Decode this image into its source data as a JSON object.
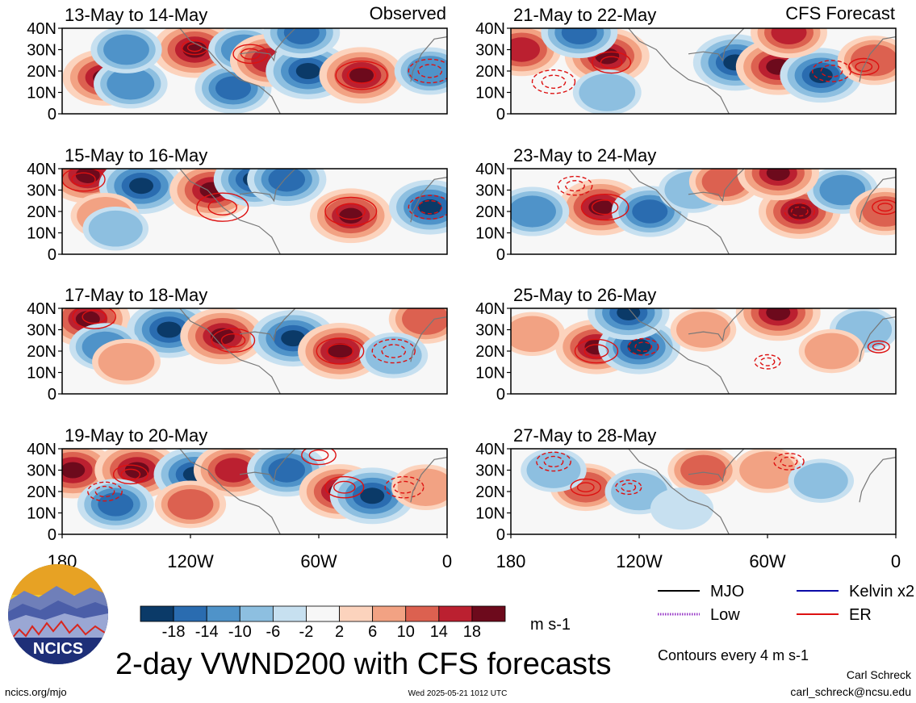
{
  "chart_data": {
    "type": "heatmap",
    "title": "2-day VWND200 with CFS forecasts",
    "units": "m s-1",
    "contour_note": "Contours every 4 m s-1",
    "column_labels": [
      "Observed",
      "CFS Forecast"
    ],
    "x_ticks": [
      "180",
      "120W",
      "60W",
      "0"
    ],
    "y_ticks": [
      "40N",
      "30N",
      "20N",
      "10N",
      "0"
    ],
    "colorbar": {
      "labels": [
        "-18",
        "-14",
        "-10",
        "-6",
        "-2",
        "2",
        "6",
        "10",
        "14",
        "18"
      ],
      "colors": [
        "#0b3a68",
        "#2a6cb0",
        "#4f93c9",
        "#8dbfe0",
        "#c7e0f0",
        "#f7f7f7",
        "#fcd3bd",
        "#f2a283",
        "#dc6150",
        "#bb2030",
        "#6d0a1c"
      ]
    },
    "legend": [
      {
        "label": "MJO",
        "color": "#000000",
        "style": "solid"
      },
      {
        "label": "Kelvin x2",
        "color": "#0a0aa8",
        "style": "solid"
      },
      {
        "label": "Low",
        "color": "#9a3cc8",
        "style": "dotted"
      },
      {
        "label": "ER",
        "color": "#dd1111",
        "style": "solid"
      }
    ],
    "panels": [
      {
        "period": "13-May to 14-May",
        "col": 0,
        "row": 0,
        "blobs": [
          [
            -160,
            17,
            1.0
          ],
          [
            -148,
            14,
            -0.6
          ],
          [
            -118,
            30,
            1.0
          ],
          [
            -100,
            12,
            -0.7
          ],
          [
            -95,
            30,
            -0.5
          ],
          [
            -83,
            25,
            0.8
          ],
          [
            -65,
            20,
            -1.0
          ],
          [
            -68,
            38,
            -0.7
          ],
          [
            -40,
            18,
            1.0
          ],
          [
            -8,
            20,
            -0.5
          ],
          [
            -150,
            30,
            -0.5
          ]
        ],
        "contours": [
          [
            -40,
            18,
            12,
            true
          ],
          [
            -92,
            28,
            8,
            true
          ],
          [
            -8,
            20,
            10,
            false
          ],
          [
            -118,
            31,
            6,
            true
          ]
        ]
      },
      {
        "period": "21-May to 22-May",
        "col": 1,
        "row": 0,
        "blobs": [
          [
            -135,
            27,
            1.0
          ],
          [
            -175,
            30,
            0.8
          ],
          [
            -148,
            38,
            -0.7
          ],
          [
            -75,
            24,
            -1.0
          ],
          [
            -55,
            22,
            1.0
          ],
          [
            -35,
            18,
            -0.9
          ],
          [
            -10,
            25,
            0.6
          ],
          [
            -135,
            10,
            -0.4
          ],
          [
            -50,
            38,
            0.7
          ]
        ],
        "contours": [
          [
            -133,
            24,
            9,
            true
          ],
          [
            -160,
            15,
            10,
            false
          ],
          [
            -30,
            20,
            9,
            false
          ],
          [
            -15,
            22,
            7,
            true
          ]
        ]
      },
      {
        "period": "15-May to 16-May",
        "col": 0,
        "row": 1,
        "blobs": [
          [
            -168,
            37,
            1.0
          ],
          [
            -143,
            32,
            -1.0
          ],
          [
            -110,
            30,
            1.0
          ],
          [
            -90,
            35,
            -0.9
          ],
          [
            -75,
            35,
            -0.8
          ],
          [
            -45,
            18,
            0.9
          ],
          [
            -8,
            22,
            -0.9
          ],
          [
            -160,
            18,
            0.4
          ],
          [
            -155,
            12,
            -0.3
          ]
        ],
        "contours": [
          [
            -45,
            20,
            12,
            true
          ],
          [
            -8,
            22,
            10,
            false
          ],
          [
            -105,
            22,
            12,
            true
          ],
          [
            -170,
            35,
            10,
            true
          ]
        ]
      },
      {
        "period": "23-May to 24-May",
        "col": 1,
        "row": 1,
        "blobs": [
          [
            -138,
            22,
            1.0
          ],
          [
            -170,
            20,
            -0.6
          ],
          [
            -115,
            20,
            -0.7
          ],
          [
            -95,
            30,
            -0.4
          ],
          [
            -80,
            34,
            0.5
          ],
          [
            -45,
            20,
            0.9
          ],
          [
            -25,
            30,
            -0.5
          ],
          [
            -5,
            20,
            0.5
          ],
          [
            -55,
            38,
            0.9
          ]
        ],
        "contours": [
          [
            -136,
            22,
            11,
            true
          ],
          [
            -5,
            22,
            6,
            true
          ],
          [
            -150,
            32,
            8,
            false
          ],
          [
            -45,
            20,
            7,
            false
          ]
        ]
      },
      {
        "period": "17-May to 18-May",
        "col": 0,
        "row": 2,
        "blobs": [
          [
            -168,
            35,
            1.0
          ],
          [
            -130,
            30,
            -1.0
          ],
          [
            -105,
            27,
            1.0
          ],
          [
            -72,
            26,
            -1.0
          ],
          [
            -50,
            20,
            1.0
          ],
          [
            -160,
            22,
            -0.5
          ],
          [
            -150,
            15,
            0.4
          ],
          [
            -10,
            35,
            0.6
          ],
          [
            -25,
            18,
            -0.4
          ]
        ],
        "contours": [
          [
            -50,
            20,
            11,
            true
          ],
          [
            -100,
            25,
            10,
            true
          ],
          [
            -25,
            20,
            10,
            false
          ],
          [
            -165,
            36,
            10,
            true
          ]
        ]
      },
      {
        "period": "25-May to 26-May",
        "col": 1,
        "row": 2,
        "blobs": [
          [
            -140,
            22,
            0.9
          ],
          [
            -120,
            22,
            -0.9
          ],
          [
            -125,
            38,
            -0.9
          ],
          [
            -55,
            38,
            1.0
          ],
          [
            -15,
            30,
            -0.4
          ],
          [
            -90,
            30,
            0.3
          ],
          [
            -30,
            20,
            0.3
          ],
          [
            -170,
            28,
            0.3
          ]
        ],
        "contours": [
          [
            -140,
            20,
            10,
            true
          ],
          [
            -118,
            22,
            7,
            false
          ],
          [
            -60,
            15,
            6,
            false
          ],
          [
            -8,
            22,
            5,
            true
          ]
        ]
      },
      {
        "period": "19-May to 20-May",
        "col": 0,
        "row": 3,
        "blobs": [
          [
            -175,
            30,
            1.0
          ],
          [
            -145,
            30,
            1.0
          ],
          [
            -118,
            28,
            -0.9
          ],
          [
            -100,
            30,
            0.8
          ],
          [
            -75,
            30,
            -0.8
          ],
          [
            -50,
            20,
            0.9
          ],
          [
            -35,
            18,
            -1.0
          ],
          [
            -155,
            14,
            -0.7
          ],
          [
            -120,
            14,
            0.5
          ],
          [
            -10,
            22,
            0.4
          ]
        ],
        "contours": [
          [
            -148,
            28,
            8,
            true
          ],
          [
            -48,
            22,
            9,
            true
          ],
          [
            -160,
            20,
            8,
            false
          ],
          [
            -20,
            22,
            9,
            false
          ],
          [
            -60,
            37,
            8,
            true
          ]
        ]
      },
      {
        "period": "27-May to 28-May",
        "col": 1,
        "row": 3,
        "blobs": [
          [
            -145,
            22,
            0.5
          ],
          [
            -120,
            20,
            -0.4
          ],
          [
            -90,
            30,
            0.5
          ],
          [
            -60,
            30,
            0.4
          ],
          [
            -35,
            25,
            -0.3
          ],
          [
            -160,
            30,
            -0.3
          ],
          [
            -100,
            12,
            -0.2
          ]
        ],
        "contours": [
          [
            -145,
            22,
            7,
            true
          ],
          [
            -125,
            22,
            6,
            false
          ],
          [
            -50,
            34,
            7,
            false
          ],
          [
            -160,
            34,
            8,
            false
          ]
        ]
      }
    ]
  },
  "footer": {
    "logo_text": "NCICS",
    "website": "ncics.org/mjo",
    "timestamp": "Wed 2025-05-21 1012 UTC",
    "author": "Carl Schreck",
    "email": "carl_schreck@ncsu.edu"
  }
}
